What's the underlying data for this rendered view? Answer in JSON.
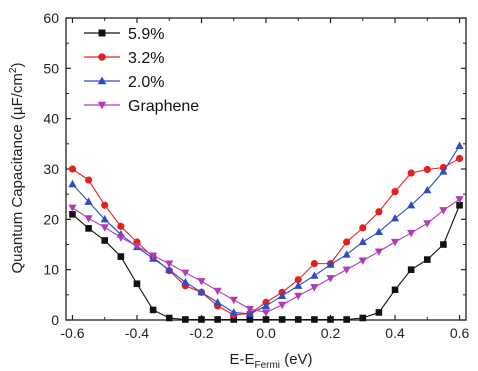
{
  "chart_data": {
    "type": "line",
    "xlabel": {
      "main": "E-E",
      "sub": "Fermi",
      "unit": " (eV)"
    },
    "ylabel": {
      "pre": "Quantum Capacitance (",
      "mu": "µ",
      "mid": "F/cm",
      "sup": "2",
      "post": ")"
    },
    "xlim": [
      -0.62,
      0.62
    ],
    "ylim": [
      0,
      60
    ],
    "xticks": [
      -0.6,
      -0.4,
      -0.2,
      0.0,
      0.2,
      0.4,
      0.6
    ],
    "xtick_labels": [
      "-0.6",
      "-0.4",
      "-0.2",
      "0.0",
      "0.2",
      "0.4",
      "0.6"
    ],
    "yticks": [
      0,
      10,
      20,
      30,
      40,
      50,
      60
    ],
    "ytick_labels": [
      "0",
      "10",
      "20",
      "30",
      "40",
      "50",
      "60"
    ],
    "legend_position": "top-left",
    "series": [
      {
        "name": "5.9%",
        "color": "#111111",
        "marker": "square",
        "x": [
          -0.6,
          -0.55,
          -0.5,
          -0.45,
          -0.4,
          -0.35,
          -0.3,
          -0.25,
          -0.2,
          -0.15,
          -0.1,
          -0.05,
          0.0,
          0.05,
          0.1,
          0.15,
          0.2,
          0.25,
          0.3,
          0.35,
          0.4,
          0.45,
          0.5,
          0.55,
          0.6
        ],
        "y": [
          21,
          18.2,
          15.8,
          12.6,
          7.2,
          2.0,
          0.4,
          0.1,
          0.1,
          0.1,
          0.1,
          0.1,
          0.1,
          0.1,
          0.1,
          0.1,
          0.1,
          0.1,
          0.4,
          1.5,
          6.0,
          10.0,
          12.0,
          15.0,
          22.8
        ]
      },
      {
        "name": "3.2%",
        "color": "#e8201c",
        "marker": "circle",
        "x": [
          -0.6,
          -0.55,
          -0.5,
          -0.45,
          -0.4,
          -0.35,
          -0.3,
          -0.25,
          -0.2,
          -0.15,
          -0.1,
          -0.05,
          0.0,
          0.05,
          0.1,
          0.15,
          0.2,
          0.25,
          0.3,
          0.35,
          0.4,
          0.45,
          0.5,
          0.55,
          0.6
        ],
        "y": [
          30.0,
          27.8,
          22.8,
          18.6,
          15.5,
          12.5,
          9.8,
          6.8,
          5.5,
          2.8,
          1.0,
          1.3,
          3.5,
          5.5,
          8.0,
          11.2,
          11.2,
          15.5,
          18.3,
          21.5,
          25.5,
          29.2,
          29.9,
          30.3,
          32.1
        ]
      },
      {
        "name": "2.0%",
        "color": "#2a4ec8",
        "marker": "triangle-up",
        "x": [
          -0.6,
          -0.55,
          -0.5,
          -0.45,
          -0.4,
          -0.35,
          -0.3,
          -0.25,
          -0.2,
          -0.15,
          -0.1,
          -0.05,
          0.0,
          0.05,
          0.1,
          0.15,
          0.2,
          0.25,
          0.3,
          0.35,
          0.4,
          0.45,
          0.5,
          0.55,
          0.6
        ],
        "y": [
          27.0,
          23.5,
          20.0,
          17.0,
          14.5,
          12.2,
          10.0,
          7.5,
          5.5,
          3.5,
          1.5,
          1.2,
          2.8,
          4.8,
          6.8,
          8.8,
          11.0,
          13.0,
          15.5,
          17.5,
          20.2,
          22.8,
          25.8,
          29.5,
          34.6
        ]
      },
      {
        "name": "Graphene",
        "color": "#b13ab8",
        "marker": "triangle-down",
        "x": [
          -0.6,
          -0.55,
          -0.5,
          -0.45,
          -0.4,
          -0.35,
          -0.3,
          -0.25,
          -0.2,
          -0.15,
          -0.1,
          -0.05,
          0.0,
          0.05,
          0.1,
          0.15,
          0.2,
          0.25,
          0.3,
          0.35,
          0.4,
          0.45,
          0.5,
          0.55,
          0.6
        ],
        "y": [
          22.3,
          20.2,
          18.4,
          16.4,
          14.7,
          12.8,
          11.2,
          9.4,
          7.7,
          5.8,
          4.0,
          2.2,
          1.5,
          3.0,
          4.8,
          6.5,
          8.3,
          10.0,
          11.8,
          13.6,
          15.5,
          17.3,
          19.2,
          21.8,
          24.0
        ]
      }
    ]
  }
}
